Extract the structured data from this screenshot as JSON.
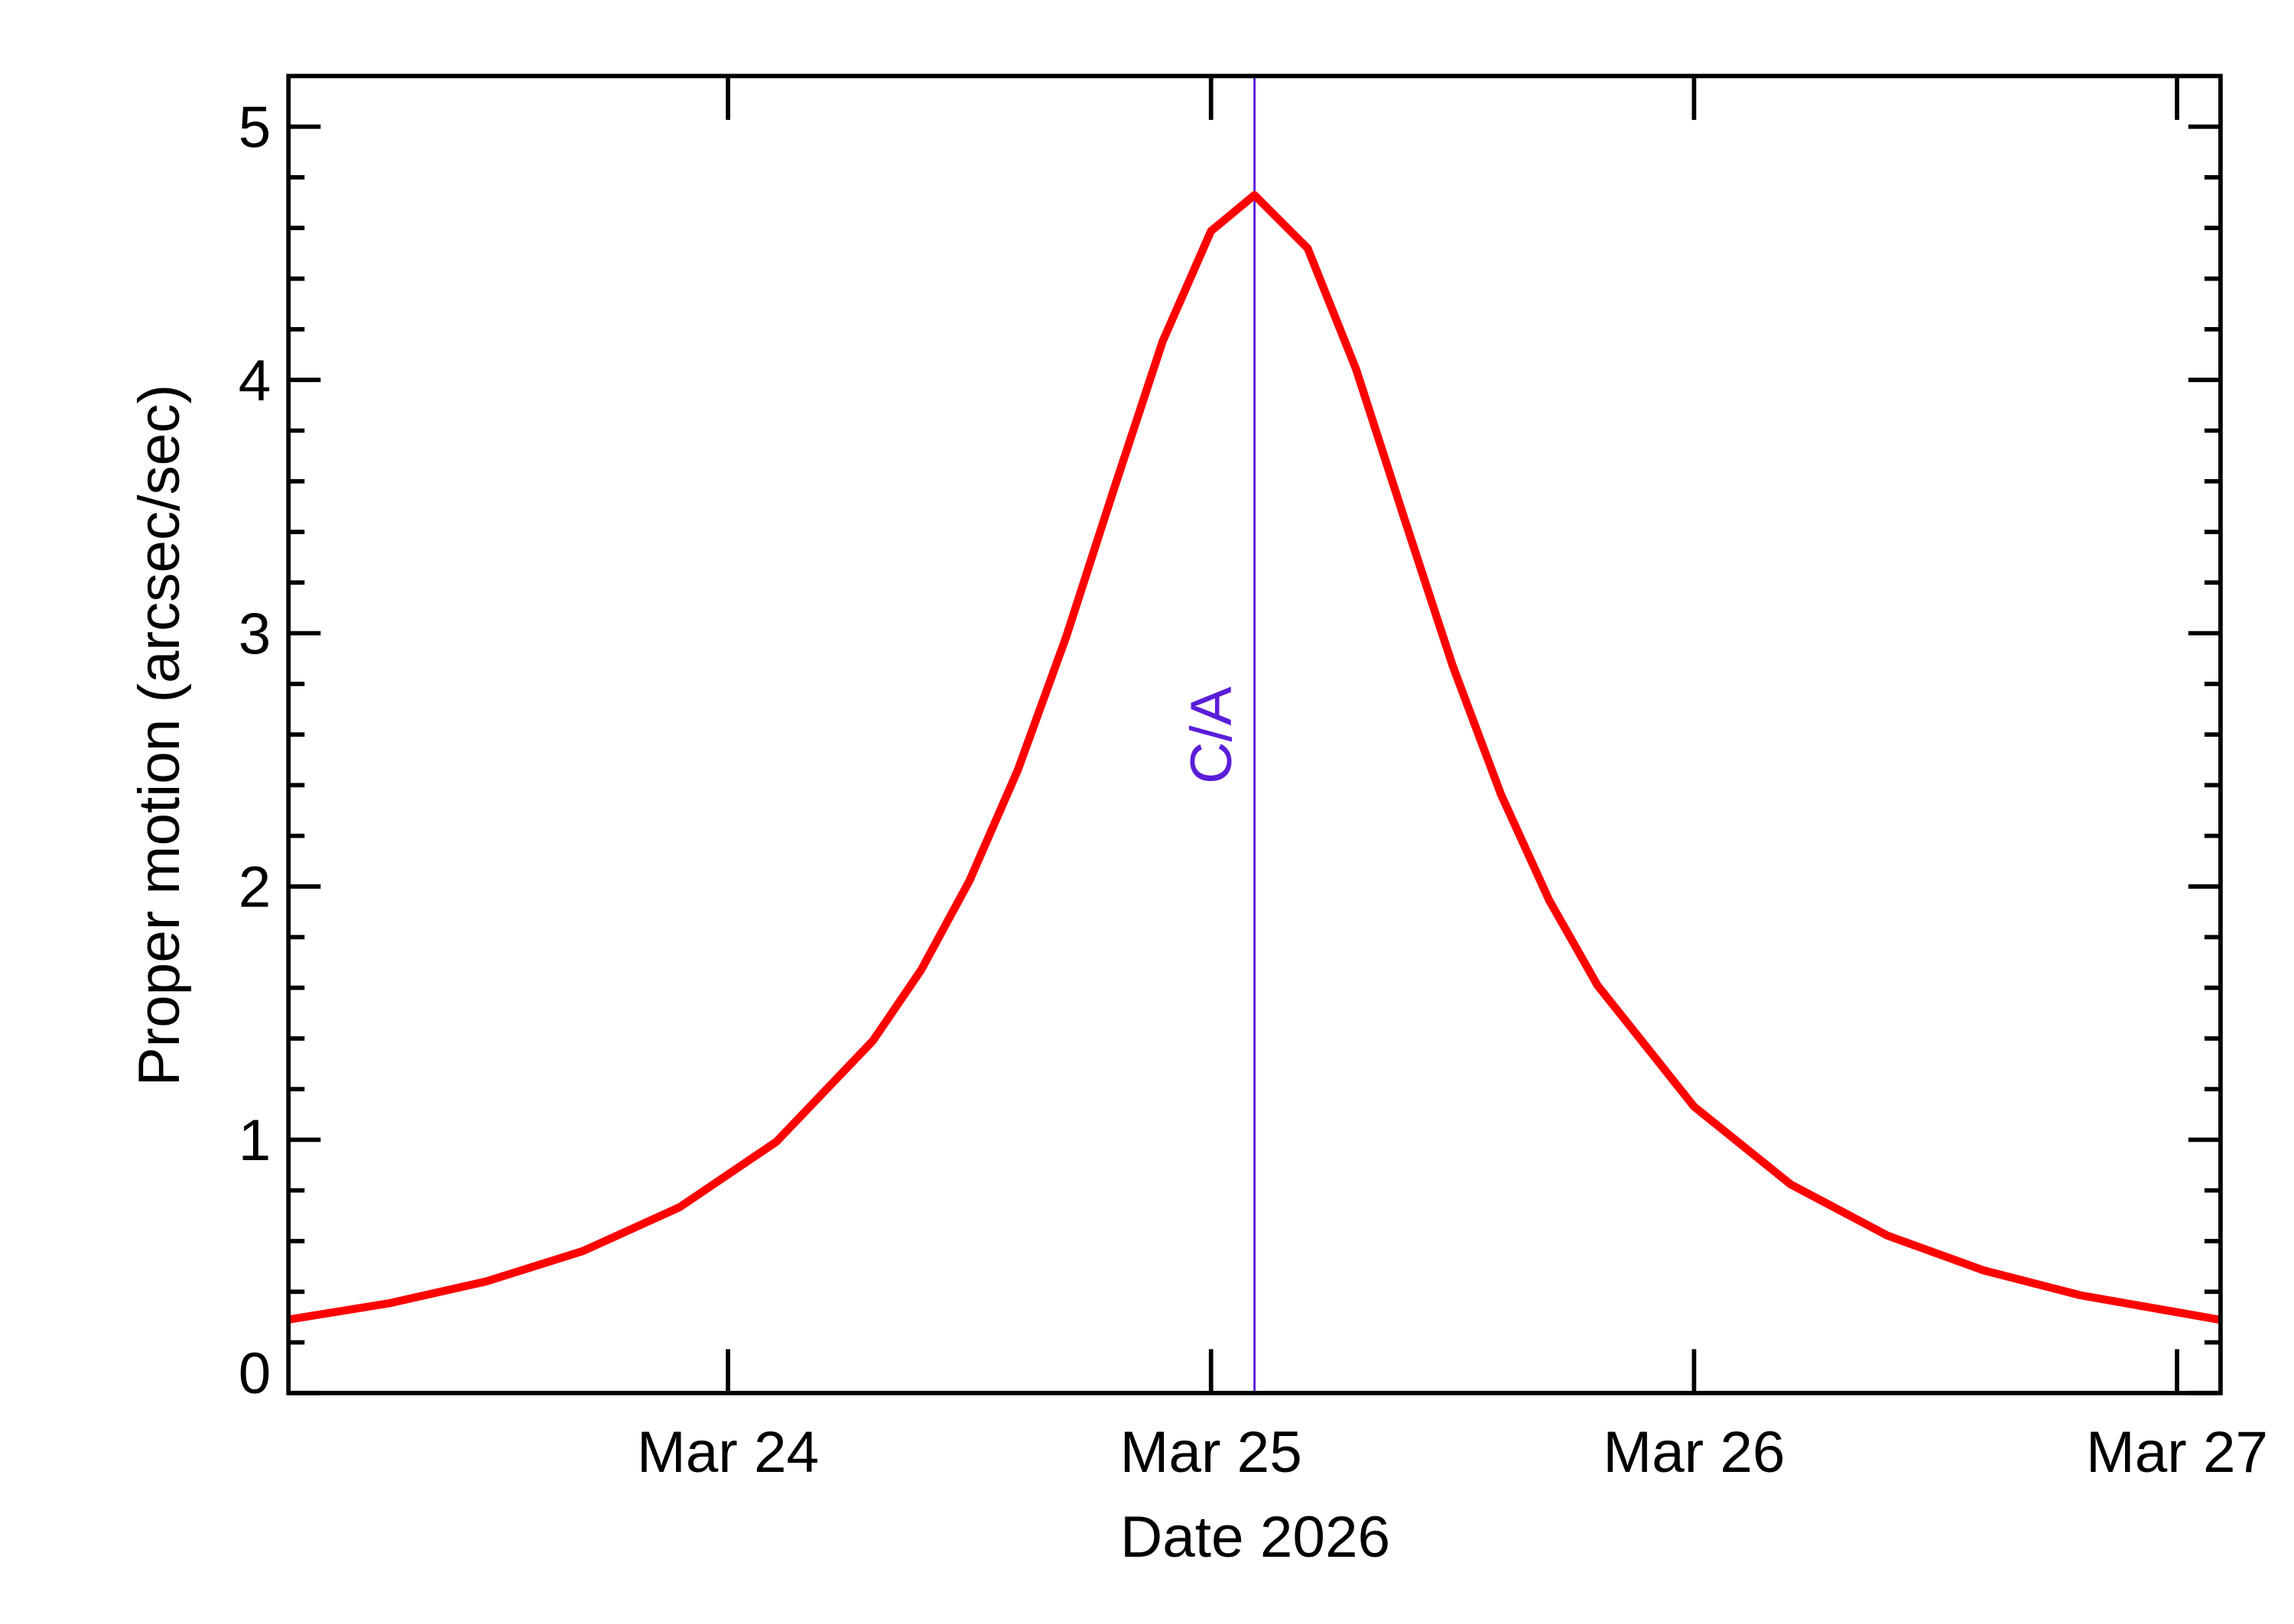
{
  "chart_data": {
    "type": "line",
    "xlabel": "Date 2026",
    "ylabel": "Proper motion (arcsec/sec)",
    "x": [
      23.09,
      23.3,
      23.5,
      23.7,
      23.9,
      24.1,
      24.3,
      24.4,
      24.5,
      24.6,
      24.7,
      24.8,
      24.9,
      25.0,
      25.09,
      25.2,
      25.3,
      25.4,
      25.5,
      25.6,
      25.7,
      25.8,
      26.0,
      26.2,
      26.4,
      26.6,
      26.8,
      27.09
    ],
    "series": [
      {
        "color": "#ff0000",
        "values": [
          0.29,
          0.355,
          0.441,
          0.561,
          0.734,
          0.992,
          1.391,
          1.671,
          2.023,
          2.46,
          2.985,
          3.575,
          4.153,
          4.588,
          4.73,
          4.52,
          4.044,
          3.454,
          2.873,
          2.365,
          1.946,
          1.61,
          1.131,
          0.824,
          0.622,
          0.484,
          0.386,
          0.289
        ]
      }
    ],
    "xlim": [
      23.09,
      27.09
    ],
    "xticks": [
      {
        "value": 24,
        "label": "Mar 24"
      },
      {
        "value": 25,
        "label": "Mar 25"
      },
      {
        "value": 26,
        "label": "Mar 26"
      },
      {
        "value": 27,
        "label": "Mar 27"
      }
    ],
    "ylim": [
      0,
      5.2
    ],
    "yticks": [
      0,
      1,
      2,
      3,
      4,
      5
    ],
    "yminorticks": [
      0.2,
      0.4,
      0.6,
      0.8,
      1.2,
      1.4,
      1.6,
      1.8,
      2.2,
      2.4,
      2.6,
      2.8,
      3.2,
      3.4,
      3.6,
      3.8,
      4.2,
      4.4,
      4.6,
      4.8
    ],
    "annotation": {
      "text": "C/A",
      "x": 25.09,
      "color": "#5a1ed8"
    }
  }
}
